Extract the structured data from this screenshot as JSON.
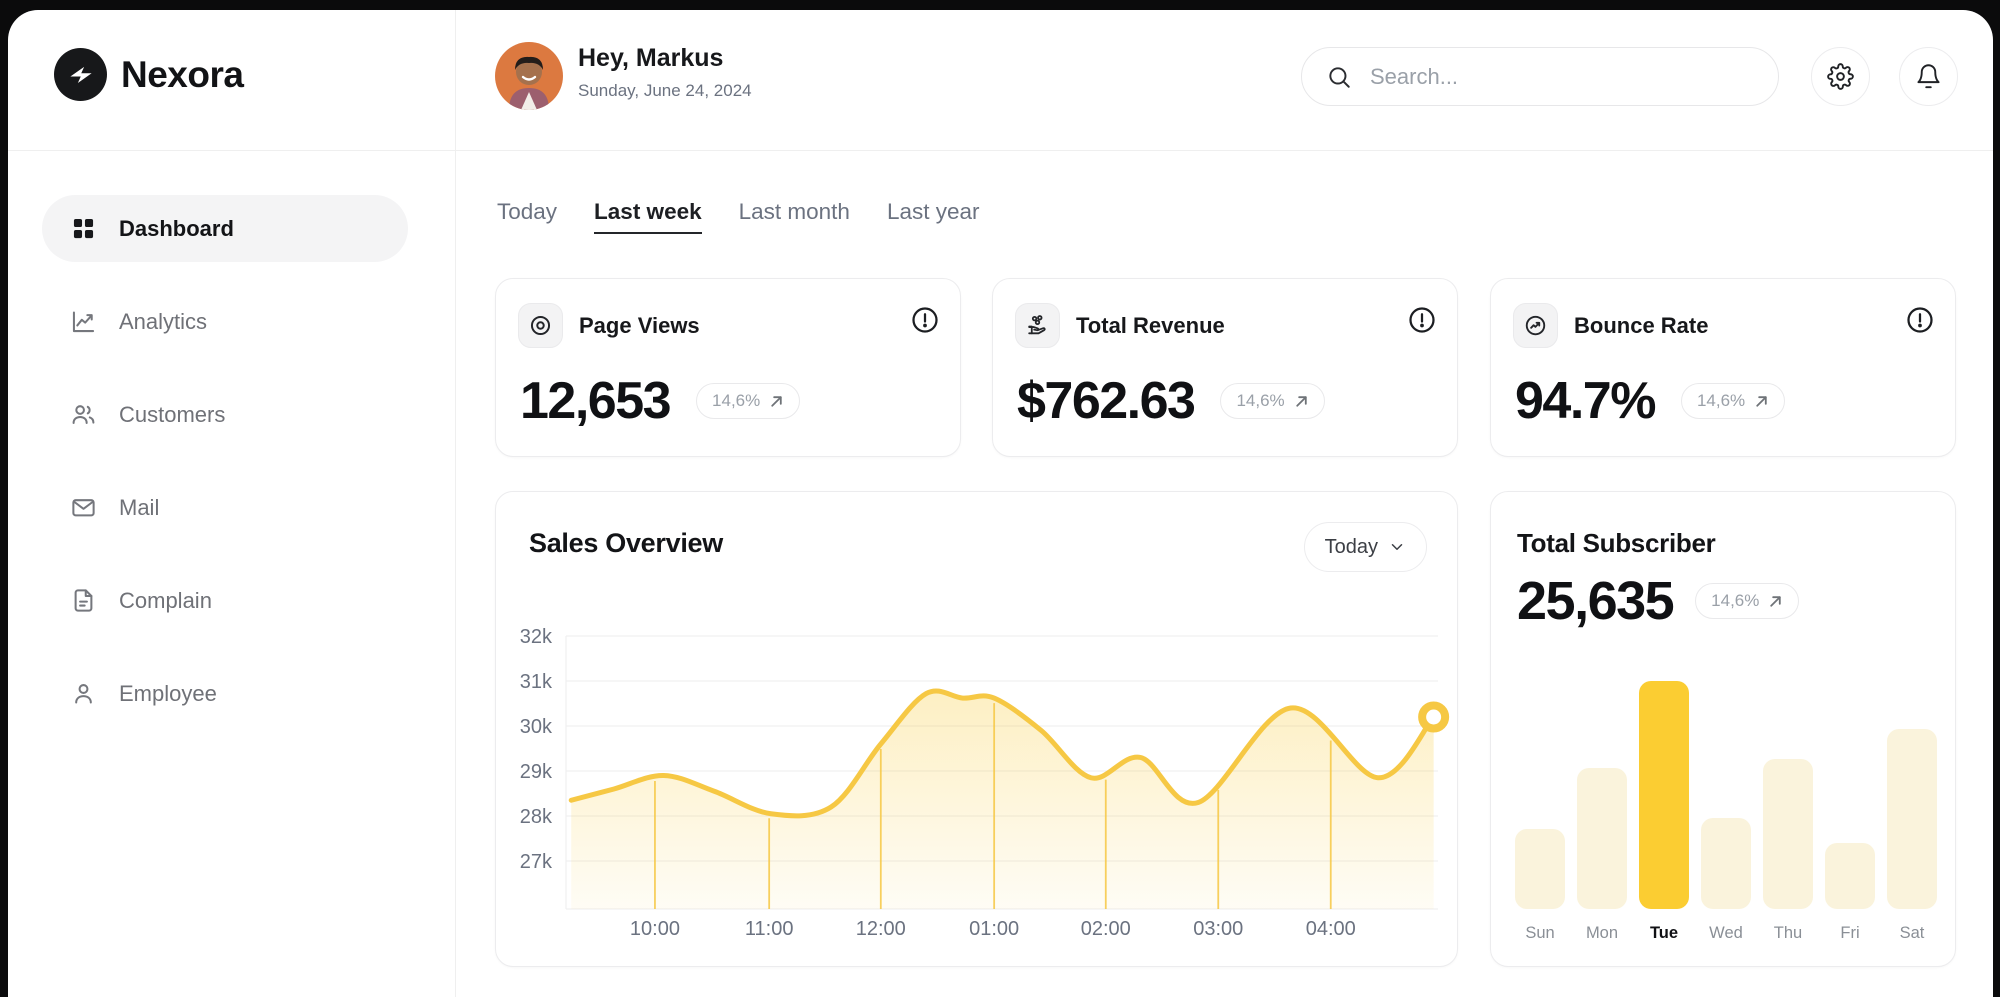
{
  "window": {
    "brand": "Nexora"
  },
  "sidebar": {
    "items": [
      {
        "label": "Dashboard",
        "icon": "grid",
        "active": true
      },
      {
        "label": "Analytics",
        "icon": "chart-line",
        "active": false
      },
      {
        "label": "Customers",
        "icon": "users",
        "active": false
      },
      {
        "label": "Mail",
        "icon": "mail",
        "active": false
      },
      {
        "label": "Complain",
        "icon": "file-text",
        "active": false
      },
      {
        "label": "Employee",
        "icon": "user",
        "active": false
      }
    ]
  },
  "header": {
    "greeting": "Hey, Markus",
    "date": "Sunday, June 24, 2024",
    "search_placeholder": "Search...",
    "action_icons": [
      "settings-gear",
      "notification-bell"
    ]
  },
  "time_filters": {
    "items": [
      "Today",
      "Last week",
      "Last month",
      "Last year"
    ],
    "active": "Last week"
  },
  "stat_cards": [
    {
      "title": "Page Views",
      "icon": "eye",
      "value": "12,653",
      "change": "14,6%"
    },
    {
      "title": "Total Revenue",
      "icon": "hand-coins",
      "value": "$762.63",
      "change": "14,6%"
    },
    {
      "title": "Bounce Rate",
      "icon": "trend-circle",
      "value": "94.7%",
      "change": "14,6%"
    }
  ],
  "sales_overview": {
    "title": "Sales Overview",
    "range_label": "Today",
    "chart_data": {
      "type": "area",
      "title": "Sales Overview",
      "x_ticks": [
        {
          "label": "10:00",
          "f": 0.102
        },
        {
          "label": "11:00",
          "f": 0.233
        },
        {
          "label": "12:00",
          "f": 0.361
        },
        {
          "label": "01:00",
          "f": 0.491
        },
        {
          "label": "02:00",
          "f": 0.619
        },
        {
          "label": "03:00",
          "f": 0.748
        },
        {
          "label": "04:00",
          "f": 0.877
        }
      ],
      "y_ticks": [
        "32k",
        "31k",
        "30k",
        "29k",
        "28k",
        "27k"
      ],
      "y_top_value_k": 32,
      "y_step_k": 1,
      "ylim_k": [
        25.9,
        32.2
      ],
      "grid": true,
      "points_fraction_valuek": [
        [
          0.006,
          28.35
        ],
        [
          0.055,
          28.6
        ],
        [
          0.112,
          28.9
        ],
        [
          0.17,
          28.55
        ],
        [
          0.235,
          28.05
        ],
        [
          0.304,
          28.2
        ],
        [
          0.361,
          29.6
        ],
        [
          0.413,
          30.72
        ],
        [
          0.455,
          30.62
        ],
        [
          0.491,
          30.62
        ],
        [
          0.545,
          29.9
        ],
        [
          0.602,
          28.85
        ],
        [
          0.659,
          29.3
        ],
        [
          0.725,
          28.3
        ],
        [
          0.831,
          30.4
        ],
        [
          0.931,
          28.85
        ],
        [
          0.995,
          30.2
        ]
      ],
      "end_marker": [
        0.995,
        30.2
      ],
      "line_color": "#F6C844",
      "fill_top_color": "rgba(248,203,56,0.30)",
      "fill_bottom_color": "rgba(248,203,56,0.05)",
      "grid_color": "#f0f0f1",
      "tick_text_color": "#6b7280"
    }
  },
  "total_subscriber": {
    "title": "Total Subscriber",
    "value": "25,635",
    "change": "14,6%",
    "chart_data": {
      "type": "bar",
      "categories": [
        "Sun",
        "Mon",
        "Tue",
        "Wed",
        "Thu",
        "Fri",
        "Sat"
      ],
      "values": [
        35,
        62,
        100,
        40,
        66,
        29,
        79
      ],
      "highlight_index": 2,
      "bar_color": "#FAF3DC",
      "highlight_color": "#FBCD32"
    }
  },
  "colors": {
    "accent_yellow": "#F6C844",
    "pale_yellow": "#FAF3DC",
    "active_pill_bg": "#f4f4f5"
  }
}
